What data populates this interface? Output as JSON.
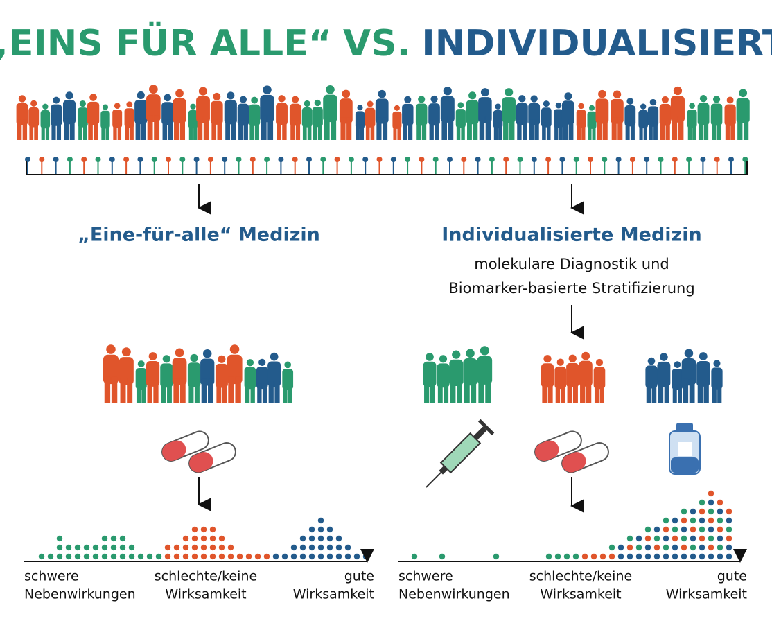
{
  "title": {
    "part1": "„EINS FÜR ALLE“",
    "part2": "VS.",
    "part3": "INDIVIDUALISIERT"
  },
  "left": {
    "heading": "„Eine-für-alle“ Medizin",
    "axis_labels": [
      [
        "schwere",
        "Nebenwirkungen"
      ],
      [
        "schlechte/keine",
        "Wirksamkeit"
      ],
      [
        "gute",
        "Wirksamkeit"
      ]
    ]
  },
  "right": {
    "heading": "Individualisierte Medizin",
    "method": [
      "molekulare Diagnostik und",
      "Biomarker-basierte Stratifizierung"
    ],
    "axis_labels": [
      [
        "schwere",
        "Nebenwirkungen"
      ],
      [
        "schlechte/keine",
        "Wirksamkeit"
      ],
      [
        "gute",
        "Wirksamkeit"
      ]
    ]
  }
}
